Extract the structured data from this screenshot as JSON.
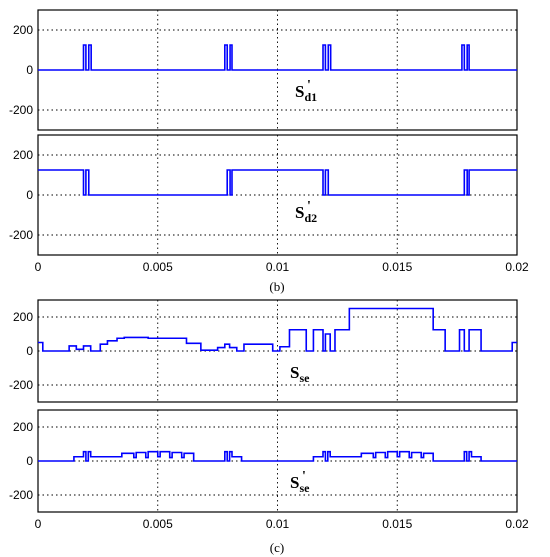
{
  "figure": {
    "captions": [
      "(b)",
      "(c)"
    ]
  },
  "chart_data": [
    {
      "type": "line",
      "panel_label": "S'd1",
      "label_main": "S",
      "label_sub": "d1",
      "label_prime": "'",
      "xlim": [
        0,
        0.02
      ],
      "ylim": [
        -300,
        300
      ],
      "yticks": [
        200,
        0,
        -200
      ],
      "ytick_labels": [
        "200",
        "0",
        "-200"
      ],
      "grid": true,
      "series": [
        {
          "x": [
            0,
            0.0019,
            0.0019,
            0.002,
            0.002,
            0.00212,
            0.00212,
            0.00222,
            0.00222,
            0.0078,
            0.0078,
            0.0079,
            0.0079,
            0.00802,
            0.00802,
            0.0081,
            0.0081,
            0.0119,
            0.0119,
            0.012,
            0.012,
            0.01212,
            0.01212,
            0.01222,
            0.01222,
            0.0177,
            0.0177,
            0.0178,
            0.0178,
            0.01792,
            0.01792,
            0.018,
            0.018,
            0.02
          ],
          "y": [
            0,
            0,
            125,
            125,
            0,
            0,
            125,
            125,
            0,
            0,
            125,
            125,
            0,
            0,
            125,
            125,
            0,
            0,
            125,
            125,
            0,
            0,
            125,
            125,
            0,
            0,
            125,
            125,
            0,
            0,
            125,
            125,
            0,
            0
          ]
        }
      ]
    },
    {
      "type": "line",
      "panel_label": "S'd2",
      "label_main": "S",
      "label_sub": "d2",
      "label_prime": "'",
      "xlim": [
        0,
        0.02
      ],
      "ylim": [
        -300,
        300
      ],
      "yticks": [
        200,
        0,
        -200
      ],
      "ytick_labels": [
        "200",
        "0",
        "-200"
      ],
      "xticks": [
        0,
        0.005,
        0.01,
        0.015,
        0.02
      ],
      "xtick_labels": [
        "0",
        "0.005",
        "0.01",
        "0.015",
        "0.02"
      ],
      "grid": true,
      "series": [
        {
          "x": [
            0,
            0.0019,
            0.0019,
            0.002,
            0.002,
            0.00212,
            0.00212,
            0.00222,
            0.00222,
            0.0078,
            0.0078,
            0.0079,
            0.0079,
            0.00802,
            0.00802,
            0.0081,
            0.0081,
            0.0119,
            0.0119,
            0.012,
            0.012,
            0.01212,
            0.01212,
            0.01222,
            0.01222,
            0.0177,
            0.0177,
            0.0178,
            0.0178,
            0.01792,
            0.01792,
            0.018,
            0.018,
            0.02
          ],
          "y": [
            125,
            125,
            0,
            0,
            125,
            125,
            0,
            0,
            0,
            0,
            0,
            0,
            125,
            125,
            0,
            0,
            125,
            125,
            0,
            0,
            125,
            125,
            0,
            0,
            0,
            0,
            0,
            0,
            125,
            125,
            0,
            0,
            125,
            125
          ]
        }
      ]
    },
    {
      "type": "line",
      "panel_label": "Sse",
      "label_main": "S",
      "label_sub": "se",
      "label_prime": "",
      "xlim": [
        0,
        0.02
      ],
      "ylim": [
        -300,
        300
      ],
      "yticks": [
        200,
        0,
        -200
      ],
      "ytick_labels": [
        "200",
        "0",
        "-200"
      ],
      "grid": true,
      "series": [
        {
          "x": [
            0,
            0.0002,
            0.0002,
            0.0013,
            0.0013,
            0.0016,
            0.0016,
            0.0019,
            0.0019,
            0.0022,
            0.0022,
            0.0026,
            0.0026,
            0.0029,
            0.0029,
            0.0033,
            0.0033,
            0.0036,
            0.0036,
            0.0046,
            0.0046,
            0.0062,
            0.0062,
            0.0068,
            0.0068,
            0.0075,
            0.0075,
            0.0078,
            0.0078,
            0.008,
            0.008,
            0.0083,
            0.0083,
            0.0086,
            0.0086,
            0.0098,
            0.0098,
            0.0101,
            0.0101,
            0.0105,
            0.0105,
            0.0112,
            0.0112,
            0.0115,
            0.0115,
            0.0119,
            0.0119,
            0.012,
            0.012,
            0.0122,
            0.0122,
            0.0124,
            0.0124,
            0.013,
            0.013,
            0.0135,
            0.0135,
            0.0165,
            0.0165,
            0.017,
            0.017,
            0.0176,
            0.0176,
            0.0178,
            0.0178,
            0.018,
            0.018,
            0.0185,
            0.0185,
            0.0198,
            0.0198,
            0.02
          ],
          "y": [
            50,
            50,
            0,
            0,
            30,
            30,
            10,
            10,
            30,
            30,
            0,
            0,
            40,
            40,
            60,
            60,
            75,
            75,
            80,
            80,
            75,
            75,
            45,
            45,
            5,
            5,
            20,
            20,
            40,
            40,
            20,
            20,
            0,
            0,
            40,
            40,
            0,
            0,
            25,
            25,
            125,
            125,
            0,
            0,
            125,
            125,
            0,
            0,
            100,
            100,
            0,
            0,
            125,
            125,
            250,
            250,
            250,
            250,
            125,
            125,
            0,
            0,
            125,
            125,
            0,
            0,
            125,
            125,
            0,
            0,
            50,
            50
          ]
        }
      ]
    },
    {
      "type": "line",
      "panel_label": "S'se",
      "label_main": "S",
      "label_sub": "se",
      "label_prime": "'",
      "xlim": [
        0,
        0.02
      ],
      "ylim": [
        -300,
        300
      ],
      "yticks": [
        200,
        0,
        -200
      ],
      "ytick_labels": [
        "200",
        "0",
        "-200"
      ],
      "xticks": [
        0,
        0.005,
        0.01,
        0.015,
        0.02
      ],
      "xtick_labels": [
        "0",
        "0.005",
        "0.01",
        "0.015",
        "0.02"
      ],
      "grid": true,
      "series": [
        {
          "x": [
            0,
            0.0015,
            0.0015,
            0.0019,
            0.0019,
            0.002,
            0.002,
            0.0021,
            0.0021,
            0.0022,
            0.0022,
            0.0035,
            0.0035,
            0.004,
            0.004,
            0.0041,
            0.0041,
            0.0045,
            0.0045,
            0.0046,
            0.0046,
            0.005,
            0.005,
            0.0051,
            0.0051,
            0.0055,
            0.0055,
            0.0056,
            0.0056,
            0.006,
            0.006,
            0.0061,
            0.0061,
            0.0065,
            0.0065,
            0.0078,
            0.0078,
            0.0079,
            0.0079,
            0.008,
            0.008,
            0.0081,
            0.0081,
            0.0085,
            0.0085,
            0.0115,
            0.0115,
            0.0119,
            0.0119,
            0.012,
            0.012,
            0.0121,
            0.0121,
            0.0122,
            0.0122,
            0.0135,
            0.0135,
            0.014,
            0.014,
            0.0141,
            0.0141,
            0.0145,
            0.0145,
            0.0146,
            0.0146,
            0.015,
            0.015,
            0.0151,
            0.0151,
            0.0155,
            0.0155,
            0.0156,
            0.0156,
            0.016,
            0.016,
            0.0161,
            0.0161,
            0.0165,
            0.0165,
            0.0178,
            0.0178,
            0.0179,
            0.0179,
            0.018,
            0.018,
            0.0181,
            0.0181,
            0.0185,
            0.0185,
            0.02
          ],
          "y": [
            0,
            0,
            25,
            25,
            55,
            55,
            0,
            0,
            55,
            55,
            25,
            25,
            45,
            45,
            20,
            20,
            50,
            50,
            20,
            20,
            55,
            55,
            25,
            25,
            55,
            55,
            20,
            20,
            50,
            50,
            20,
            20,
            45,
            45,
            0,
            0,
            55,
            55,
            0,
            0,
            55,
            55,
            25,
            25,
            0,
            0,
            25,
            25,
            55,
            55,
            0,
            0,
            55,
            55,
            25,
            25,
            45,
            45,
            20,
            20,
            50,
            50,
            20,
            20,
            55,
            55,
            25,
            25,
            55,
            55,
            20,
            20,
            50,
            50,
            20,
            20,
            45,
            45,
            0,
            0,
            55,
            55,
            0,
            0,
            55,
            55,
            25,
            25,
            0,
            0
          ]
        }
      ]
    }
  ]
}
